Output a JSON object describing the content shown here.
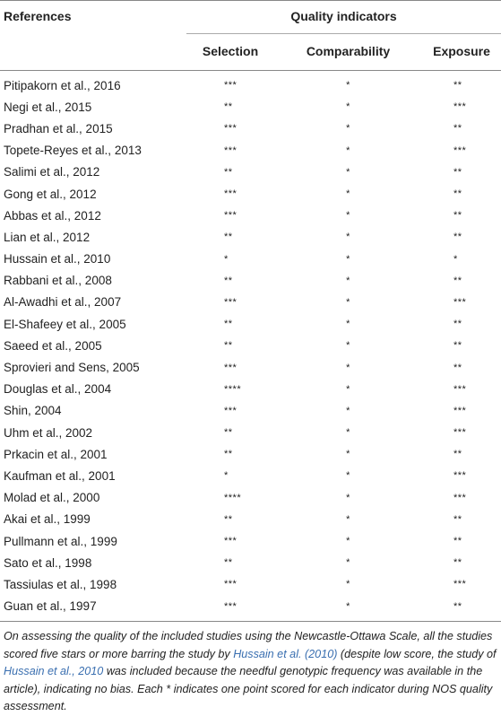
{
  "table": {
    "header": {
      "references": "References",
      "quality_indicators": "Quality indicators",
      "selection": "Selection",
      "comparability": "Comparability",
      "exposure": "Exposure"
    },
    "rows": [
      {
        "ref": "Pitipakorn et al., 2016",
        "selection": "***",
        "comparability": "*",
        "exposure": "**"
      },
      {
        "ref": "Negi et al., 2015",
        "selection": "**",
        "comparability": "*",
        "exposure": "***"
      },
      {
        "ref": "Pradhan et al., 2015",
        "selection": "***",
        "comparability": "*",
        "exposure": "**"
      },
      {
        "ref": "Topete-Reyes et al., 2013",
        "selection": "***",
        "comparability": "*",
        "exposure": "***"
      },
      {
        "ref": "Salimi et al., 2012",
        "selection": "**",
        "comparability": "*",
        "exposure": "**"
      },
      {
        "ref": "Gong et al., 2012",
        "selection": "***",
        "comparability": "*",
        "exposure": "**"
      },
      {
        "ref": "Abbas et al., 2012",
        "selection": "***",
        "comparability": "*",
        "exposure": "**"
      },
      {
        "ref": "Lian et al., 2012",
        "selection": "**",
        "comparability": "*",
        "exposure": "**"
      },
      {
        "ref": "Hussain et al., 2010",
        "selection": "*",
        "comparability": "*",
        "exposure": "*"
      },
      {
        "ref": "Rabbani et al., 2008",
        "selection": "**",
        "comparability": "*",
        "exposure": "**"
      },
      {
        "ref": "Al-Awadhi et al., 2007",
        "selection": "***",
        "comparability": "*",
        "exposure": "***"
      },
      {
        "ref": "El-Shafeey et al., 2005",
        "selection": "**",
        "comparability": "*",
        "exposure": "**"
      },
      {
        "ref": "Saeed et al., 2005",
        "selection": "**",
        "comparability": "*",
        "exposure": "**"
      },
      {
        "ref": "Sprovieri and Sens, 2005",
        "selection": "***",
        "comparability": "*",
        "exposure": "**"
      },
      {
        "ref": "Douglas et al., 2004",
        "selection": "****",
        "comparability": "*",
        "exposure": "***"
      },
      {
        "ref": "Shin, 2004",
        "selection": "***",
        "comparability": "*",
        "exposure": "***"
      },
      {
        "ref": "Uhm et al., 2002",
        "selection": "**",
        "comparability": "*",
        "exposure": "***"
      },
      {
        "ref": "Prkacin et al., 2001",
        "selection": "**",
        "comparability": "*",
        "exposure": "**"
      },
      {
        "ref": "Kaufman et al., 2001",
        "selection": "*",
        "comparability": "*",
        "exposure": "***"
      },
      {
        "ref": "Molad et al., 2000",
        "selection": "****",
        "comparability": "*",
        "exposure": "***"
      },
      {
        "ref": "Akai et al., 1999",
        "selection": "**",
        "comparability": "*",
        "exposure": "**"
      },
      {
        "ref": "Pullmann et al., 1999",
        "selection": "***",
        "comparability": "*",
        "exposure": "**"
      },
      {
        "ref": "Sato et al., 1998",
        "selection": "**",
        "comparability": "*",
        "exposure": "**"
      },
      {
        "ref": "Tassiulas et al., 1998",
        "selection": "***",
        "comparability": "*",
        "exposure": "***"
      },
      {
        "ref": "Guan et al., 1997",
        "selection": "***",
        "comparability": "*",
        "exposure": "**"
      }
    ]
  },
  "footnote": {
    "part1": "On assessing the quality of the included studies using the Newcastle-Ottawa Scale, all the studies scored five stars or more barring the study by ",
    "link1": "Hussain et al. (2010)",
    "part2": " (despite low score, the study of ",
    "link2": "Hussain et al., 2010",
    "part3": " was included because the needful genotypic frequency was available in the article), indicating no bias. Each * indicates one point scored for each indicator during NOS quality assessment."
  },
  "colors": {
    "text": "#222222",
    "link": "#3a6fb0",
    "rule": "#888888"
  }
}
